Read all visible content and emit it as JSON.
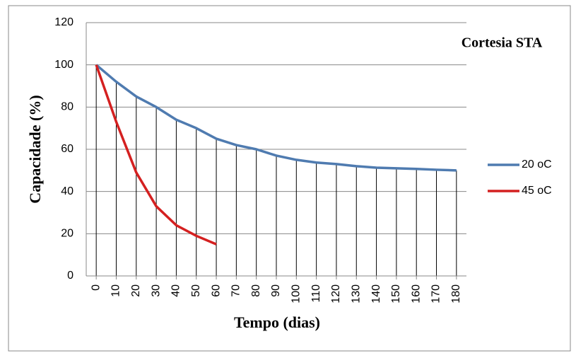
{
  "chart_data": {
    "type": "line",
    "xlabel": "Tempo (dias)",
    "ylabel": "Capacidade (%)",
    "annotation": "Cortesia STA",
    "x": [
      0,
      10,
      20,
      30,
      40,
      50,
      60,
      70,
      80,
      90,
      100,
      110,
      120,
      130,
      140,
      150,
      160,
      170,
      180
    ],
    "xlim": [
      -5,
      185
    ],
    "xticks": [
      0,
      10,
      20,
      30,
      40,
      50,
      60,
      70,
      80,
      90,
      100,
      110,
      120,
      130,
      140,
      150,
      160,
      170,
      180
    ],
    "ylim": [
      0,
      120
    ],
    "yticks": [
      0,
      20,
      40,
      60,
      80,
      100,
      120
    ],
    "grid": true,
    "drop_lines": true,
    "legend": "right",
    "series": [
      {
        "name": "20 oC",
        "color": "#4f7bb0",
        "values": [
          100,
          92,
          85,
          80,
          74,
          70,
          65,
          62,
          60,
          57,
          55,
          53.7,
          53,
          52,
          51.3,
          51,
          50.7,
          50.3,
          50
        ]
      },
      {
        "name": "45 oC",
        "color": "#d42020",
        "values": [
          100,
          73,
          49,
          33,
          24,
          19,
          15,
          null,
          null,
          null,
          null,
          null,
          null,
          null,
          null,
          null,
          null,
          null,
          null
        ]
      }
    ]
  }
}
